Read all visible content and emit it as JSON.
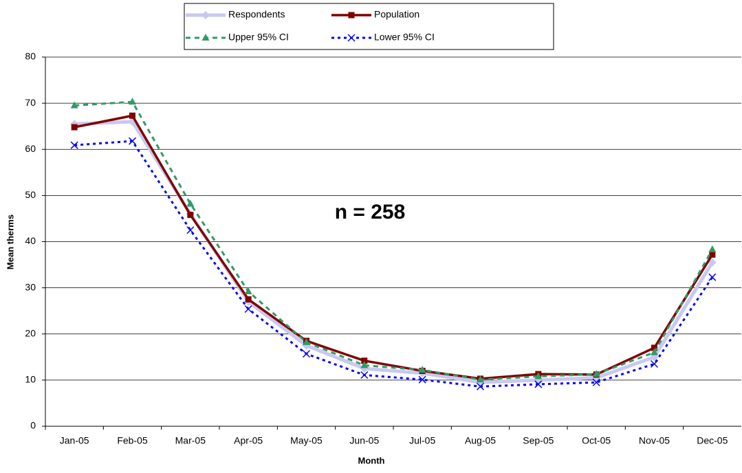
{
  "chart_data": {
    "type": "line",
    "x_label": "Month",
    "y_label": "Mean therms",
    "annotation": "n = 258",
    "categories": [
      "Jan-05",
      "Feb-05",
      "Mar-05",
      "Apr-05",
      "May-05",
      "Jun-05",
      "Jul-05",
      "Aug-05",
      "Sep-05",
      "Oct-05",
      "Nov-05",
      "Dec-05"
    ],
    "series": [
      {
        "name": "Respondents",
        "color": "#c8c8f0",
        "values": [
          65.5,
          66,
          46,
          27,
          17.5,
          12.5,
          11.5,
          9.5,
          10,
          10.5,
          15,
          35.5
        ]
      },
      {
        "name": "Population",
        "color": "#800000",
        "values": [
          64.8,
          67.3,
          45.8,
          27.5,
          18.5,
          14.2,
          12,
          10.3,
          11.3,
          11.2,
          17,
          37.2
        ]
      },
      {
        "name": "Upper 95% CI",
        "color": "#339966",
        "values": [
          69.5,
          70.3,
          48.2,
          29.2,
          18.2,
          13.2,
          12.2,
          10.1,
          10.8,
          11.3,
          16,
          38.3
        ]
      },
      {
        "name": "Lower 95% CI",
        "color": "#0000ff",
        "values": [
          60.9,
          61.8,
          42.5,
          25.4,
          15.7,
          11.1,
          10.1,
          8.6,
          9.1,
          9.5,
          13.5,
          32.3
        ]
      }
    ],
    "ylim": [
      0,
      80
    ],
    "yticks": [
      0,
      10,
      20,
      30,
      40,
      50,
      60,
      70,
      80
    ],
    "grid": true,
    "legend": "top"
  }
}
